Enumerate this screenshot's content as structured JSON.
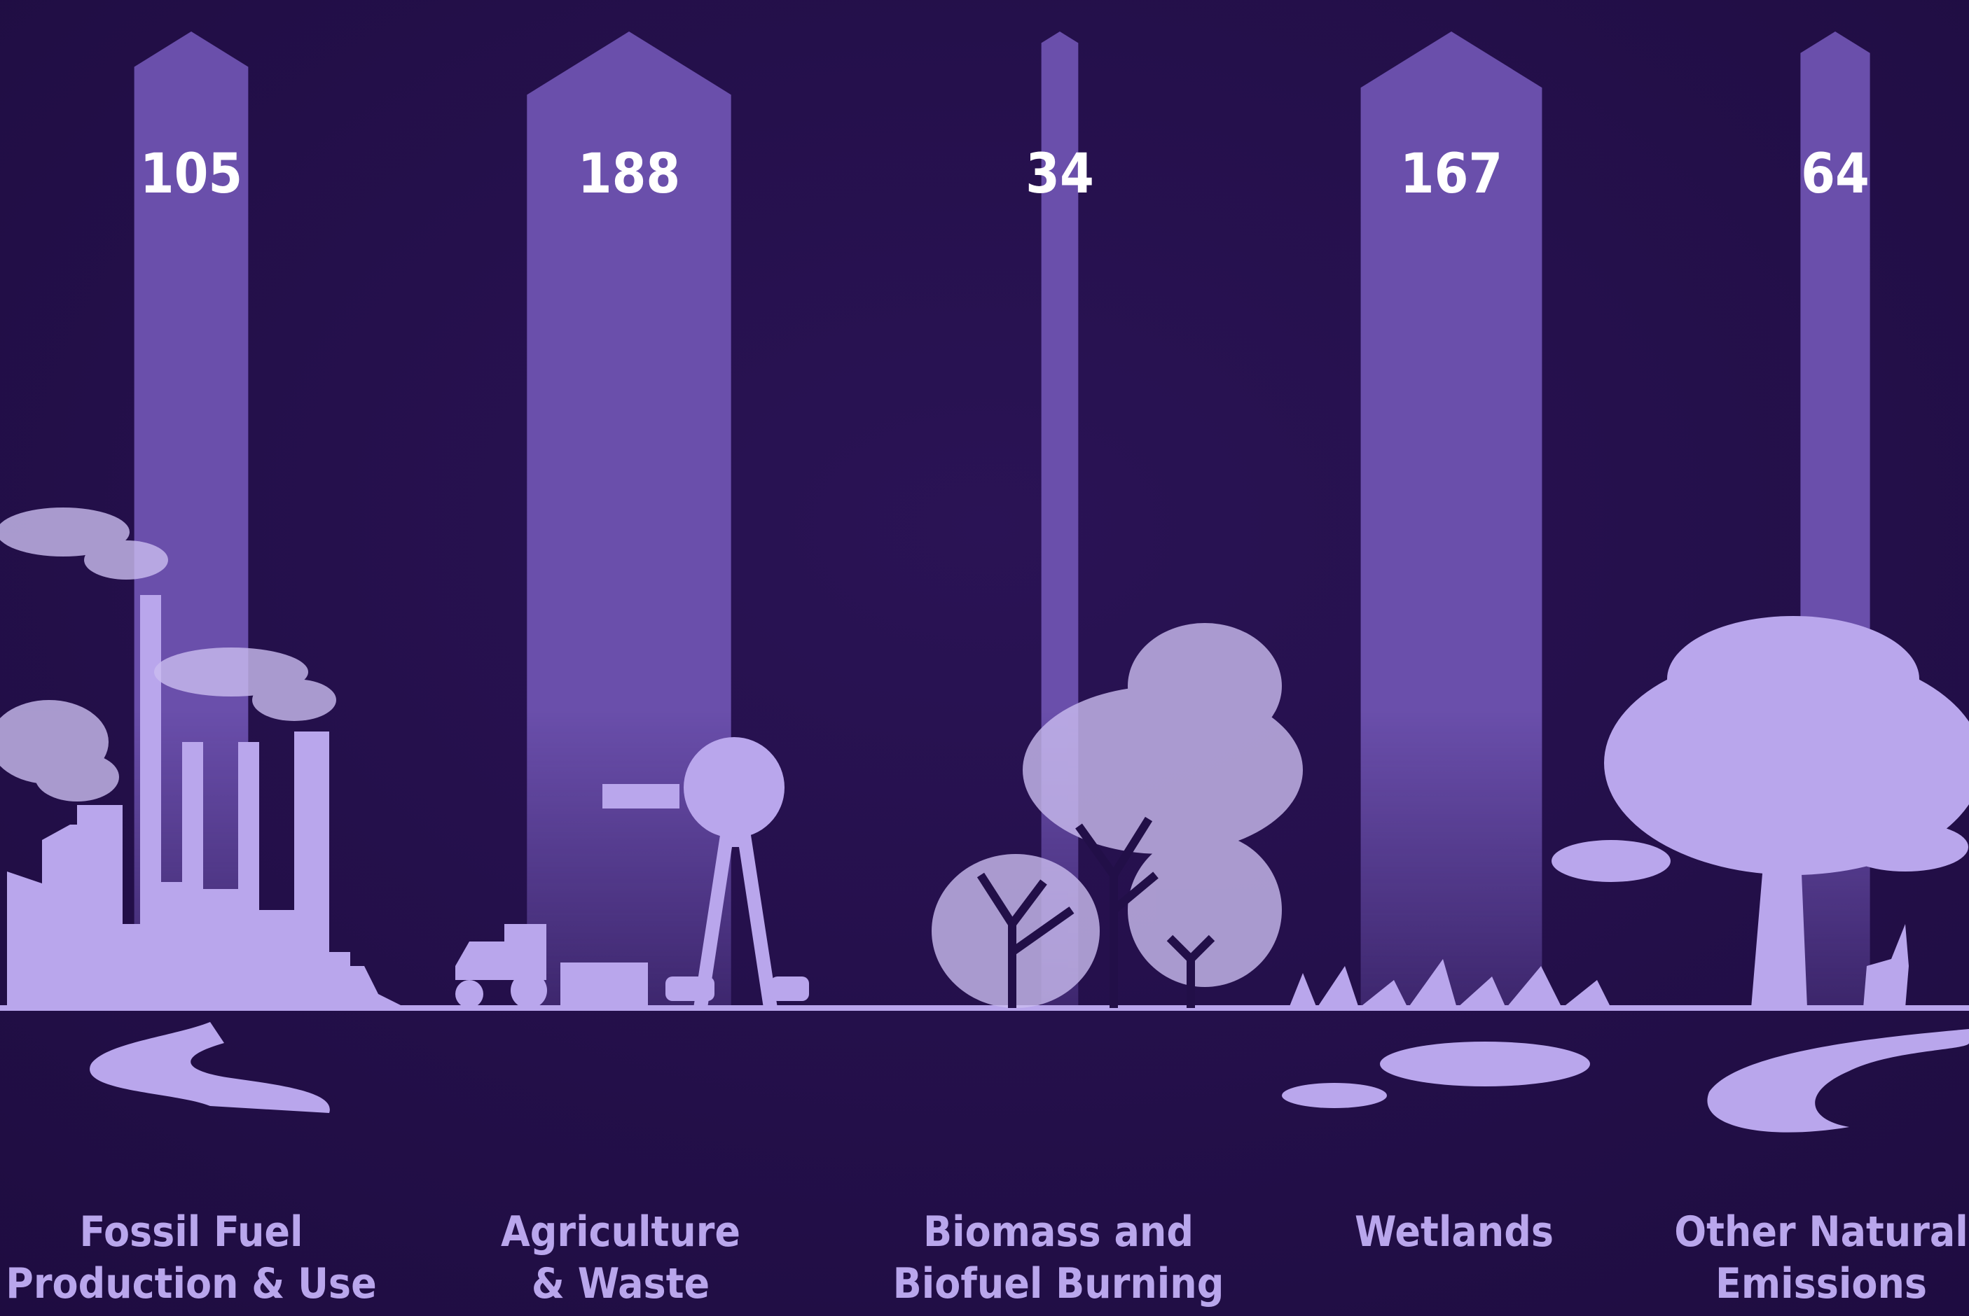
{
  "chart_data": {
    "type": "arrow",
    "categories": [
      "Fossil Fuel\nProduction & Use",
      "Agriculture\n& Waste",
      "Biomass and\nBiofuel Burning",
      "Wetlands",
      "Other Natural\nEmissions"
    ],
    "values": [
      105,
      188,
      34,
      167,
      64
    ],
    "color": "#6a4fab"
  }
}
